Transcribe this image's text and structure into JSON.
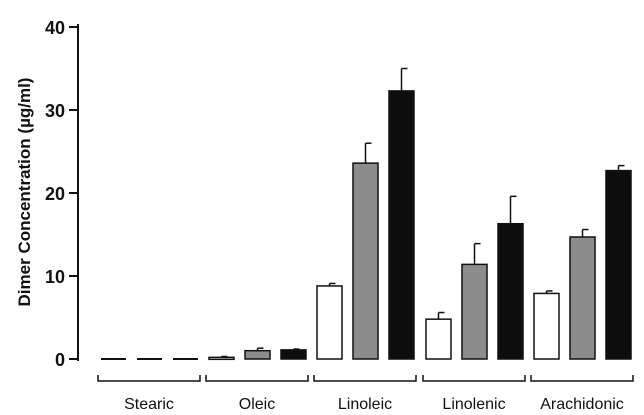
{
  "chart_data": {
    "type": "bar",
    "ylabel": "Dimer Concentration (µg/ml)",
    "ylim": [
      0,
      40
    ],
    "yticks": [
      0,
      10,
      20,
      30,
      40
    ],
    "categories": [
      "Stearic",
      "Oleic",
      "Linoleic",
      "Linolenic",
      "Arachidonic"
    ],
    "series": [
      {
        "fill": "#ffffff",
        "values": [
          0,
          0.2,
          8.8,
          4.8,
          7.9
        ],
        "errors": [
          0,
          0.1,
          0.3,
          0.8,
          0.3
        ]
      },
      {
        "fill": "#8c8c8c",
        "values": [
          0,
          1.0,
          23.6,
          11.4,
          14.7
        ],
        "errors": [
          0,
          0.3,
          2.4,
          2.5,
          0.9
        ]
      },
      {
        "fill": "#0d0d0d",
        "values": [
          0,
          1.1,
          32.3,
          16.3,
          22.7
        ],
        "errors": [
          0,
          0.1,
          2.7,
          3.3,
          0.6
        ]
      }
    ],
    "grid": false,
    "legend": "none"
  }
}
